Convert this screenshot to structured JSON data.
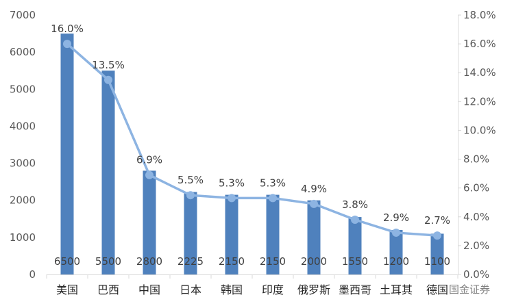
{
  "chart_data": {
    "type": "bar",
    "title": "",
    "xlabel": "",
    "ylabel": "",
    "y2label": "",
    "categories": [
      "美国",
      "巴西",
      "中国",
      "日本",
      "韩国",
      "印度",
      "俄罗斯",
      "墨西哥",
      "土耳其",
      "德国"
    ],
    "series": [
      {
        "type": "bar",
        "axis": "left",
        "values": [
          6500,
          5500,
          2800,
          2225,
          2150,
          2150,
          2000,
          1550,
          1200,
          1100
        ],
        "color": "#4f81bd"
      },
      {
        "type": "line",
        "axis": "right",
        "values": [
          16.0,
          13.5,
          6.9,
          5.5,
          5.3,
          5.3,
          4.9,
          3.8,
          2.9,
          2.7
        ],
        "color": "#8db4e2"
      }
    ],
    "ylim": [
      0,
      7000
    ],
    "yticks": [
      0,
      1000,
      2000,
      3000,
      4000,
      5000,
      6000,
      7000
    ],
    "y2lim": [
      0,
      18
    ],
    "y2ticks": [
      0,
      2,
      4,
      6,
      8,
      10,
      12,
      14,
      16,
      18
    ],
    "y2_tick_format": "percent_1dp",
    "bar_value_labels": true,
    "line_value_labels": true,
    "grid": false,
    "legend": "none"
  },
  "watermark": {
    "text": "国金证券"
  },
  "colors": {
    "axis": "#d9d9d9",
    "bar": "#4f81bd",
    "line": "#8db4e2"
  }
}
